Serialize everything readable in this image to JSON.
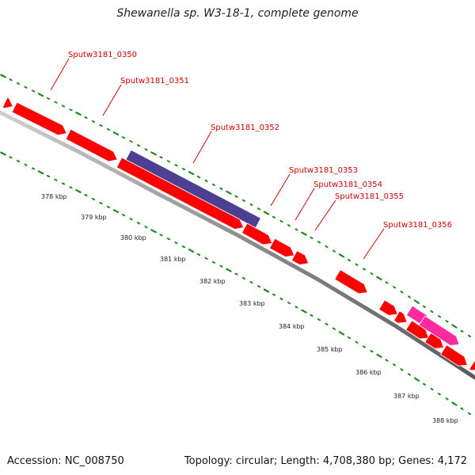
{
  "title": "Shewanella sp. W3-18-1, complete genome",
  "footer": {
    "accession": "Accession: NC_008750",
    "summary": "Topology: circular; Length: 4,708,380 bp; Genes: 4,172"
  },
  "colors": {
    "gene_forward": "#ff0000",
    "gene_highlight": "#4b4092",
    "gene_pink": "#ff2aa0",
    "backbone": "#888888",
    "tick_dots": "#1a8a1a",
    "label_red": "#d00000"
  },
  "scale_ticks": [
    "378 kbp",
    "379 kbp",
    "380 kbp",
    "381 kbp",
    "382 kbp",
    "383 kbp",
    "384 kbp",
    "385 kbp",
    "386 kbp",
    "387 kbp",
    "388 kbp"
  ],
  "gene_labels": [
    "Sputw3181_0350",
    "Sputw3181_0351",
    "Sputw3181_0352",
    "Sputw3181_0353",
    "Sputw3181_0354",
    "Sputw3181_0355",
    "Sputw3181_0356"
  ]
}
